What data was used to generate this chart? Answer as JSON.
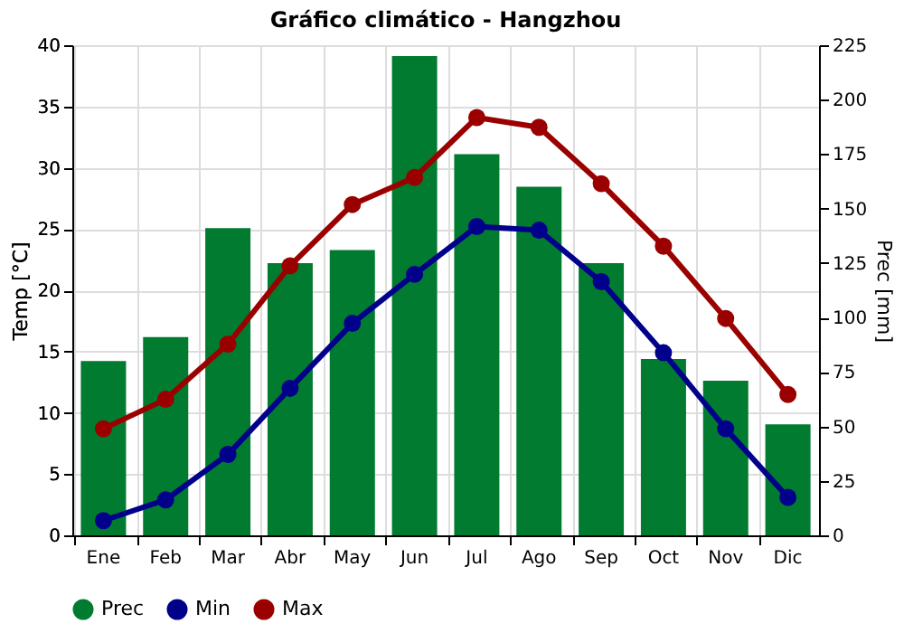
{
  "chart_data": {
    "type": "bar",
    "title": "Gráfico climático - Hangzhou",
    "ylabel": "Temp [°C]",
    "y2label": "Prec [mm]",
    "categories": [
      "Ene",
      "Feb",
      "Mar",
      "Abr",
      "May",
      "Jun",
      "Jul",
      "Ago",
      "Sep",
      "Oct",
      "Nov",
      "Dic"
    ],
    "series": [
      {
        "name": "Prec",
        "axis": "y2",
        "color": "#007b30",
        "values": [
          80,
          91,
          141,
          125,
          131,
          220,
          175,
          160,
          125,
          81,
          71,
          51
        ]
      },
      {
        "name": "Min",
        "type": "line",
        "color": "#00008b",
        "values": [
          1.2,
          2.9,
          6.6,
          12.0,
          17.3,
          21.3,
          25.2,
          24.9,
          20.7,
          14.9,
          8.7,
          3.1
        ]
      },
      {
        "name": "Max",
        "type": "line",
        "color": "#9b0000",
        "values": [
          8.7,
          11.1,
          15.6,
          22.0,
          27.0,
          29.2,
          34.1,
          33.3,
          28.7,
          23.6,
          17.7,
          11.5
        ]
      }
    ],
    "ylim": [
      0,
      40
    ],
    "yticks": [
      0,
      5,
      10,
      15,
      20,
      25,
      30,
      35,
      40
    ],
    "y2lim": [
      0,
      225
    ],
    "y2ticks": [
      0,
      25,
      50,
      75,
      100,
      125,
      150,
      175,
      200,
      225
    ],
    "grid": true,
    "legend": "bottom",
    "marker": "circle",
    "line_style": "solid"
  }
}
